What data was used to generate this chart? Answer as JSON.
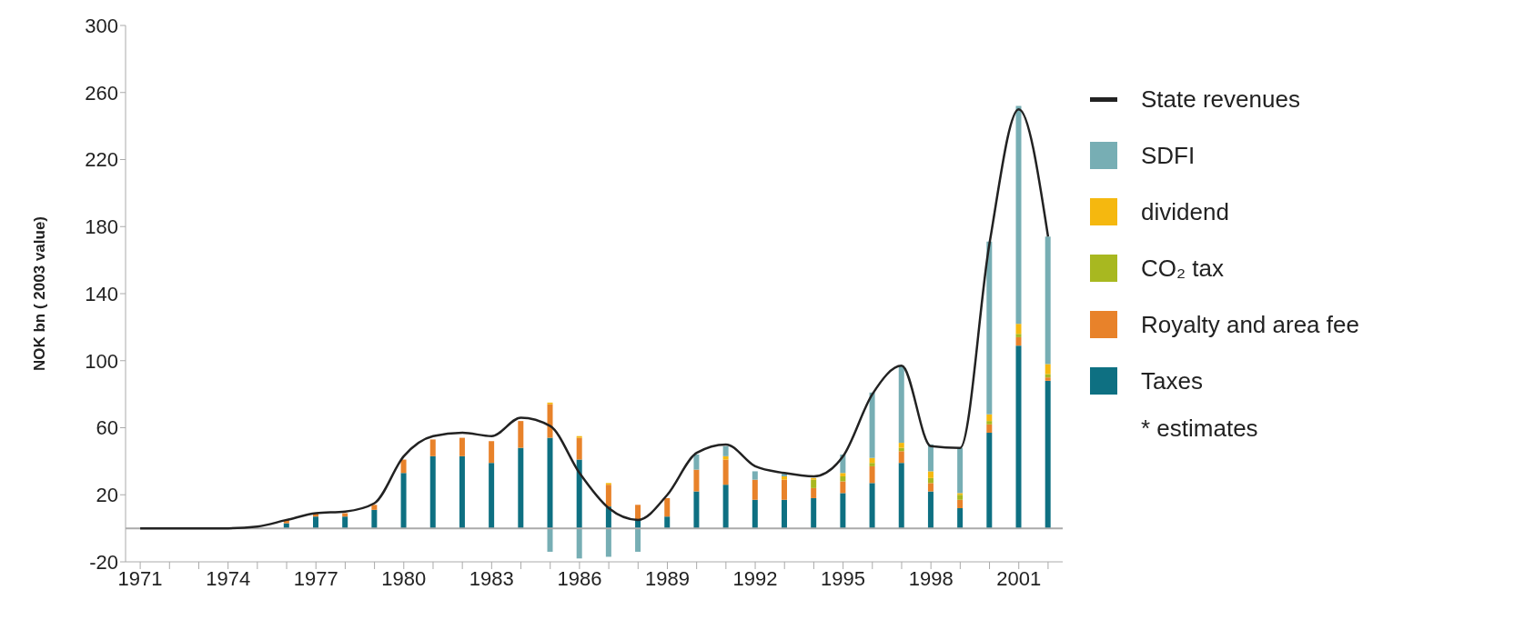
{
  "chart_data": {
    "type": "bar",
    "stacked": true,
    "ylabel": "NOK bn ( 2003 value)",
    "categories": [
      "1971",
      null,
      null,
      "1974",
      null,
      null,
      "1977",
      null,
      null,
      "1980",
      null,
      null,
      "1983",
      null,
      null,
      "1986",
      null,
      null,
      "1989",
      null,
      null,
      "1992",
      null,
      null,
      "1995",
      null,
      null,
      "1998",
      null,
      null,
      "2001",
      null
    ],
    "series": [
      {
        "name": "Taxes",
        "color": "#0e7082",
        "values": [
          0,
          0,
          0,
          0,
          0,
          3,
          7,
          7,
          11,
          33,
          43,
          43,
          39,
          48,
          54,
          41,
          13,
          5,
          7,
          22,
          26,
          17,
          17,
          18,
          21,
          27,
          39,
          22,
          12,
          57,
          109,
          88
        ]
      },
      {
        "name": "Royalty and area fee",
        "color": "#e8822a",
        "values": [
          0,
          0,
          0,
          0,
          0,
          2,
          2,
          2,
          3,
          8,
          10,
          11,
          13,
          16,
          20,
          13,
          13,
          9,
          11,
          13,
          15,
          12,
          12,
          6,
          7,
          10,
          7,
          5,
          5,
          5,
          5,
          2
        ]
      },
      {
        "name": "CO₂ tax",
        "color": "#a8b820",
        "values": [
          0,
          0,
          0,
          0,
          0,
          0,
          0,
          0,
          0,
          0,
          0,
          0,
          0,
          0,
          0,
          0,
          0,
          0,
          0,
          0,
          0,
          0,
          0,
          5,
          3,
          2,
          2,
          3,
          3,
          2,
          2,
          2
        ]
      },
      {
        "name": "dividend",
        "color": "#f5b80f",
        "values": [
          0,
          0,
          0,
          0,
          0,
          0,
          0,
          0,
          0,
          0,
          0,
          0,
          0,
          0,
          1,
          1,
          1,
          0,
          0,
          0,
          2,
          0,
          2,
          1,
          2,
          3,
          3,
          4,
          1,
          4,
          6,
          6
        ]
      },
      {
        "name": "SDFI",
        "color": "#77aeb4",
        "values": [
          0,
          0,
          0,
          0,
          0,
          0,
          0,
          0,
          0,
          0,
          0,
          0,
          0,
          0,
          -14,
          -18,
          -17,
          -14,
          0,
          9,
          6,
          5,
          2,
          0,
          11,
          39,
          46,
          16,
          27,
          103,
          130,
          76
        ]
      },
      {
        "name": "State revenues",
        "type": "line",
        "color": "#222222",
        "values": [
          0,
          0,
          0,
          0,
          1,
          5,
          9,
          10,
          15,
          43,
          55,
          57,
          55,
          66,
          61,
          33,
          12,
          5,
          20,
          45,
          50,
          37,
          33,
          31,
          43,
          80,
          97,
          49,
          48,
          170,
          250,
          174
        ]
      }
    ],
    "ylim": [
      -20,
      300
    ],
    "yticks": [
      -20,
      20,
      60,
      100,
      140,
      180,
      220,
      260,
      300
    ],
    "ref_lines": [
      {
        "axis": "y",
        "value": 0,
        "color": "#aaaaaa"
      }
    ],
    "grid": false,
    "legend": "right",
    "marker": "none",
    "annotations": [
      "* estimates"
    ]
  }
}
